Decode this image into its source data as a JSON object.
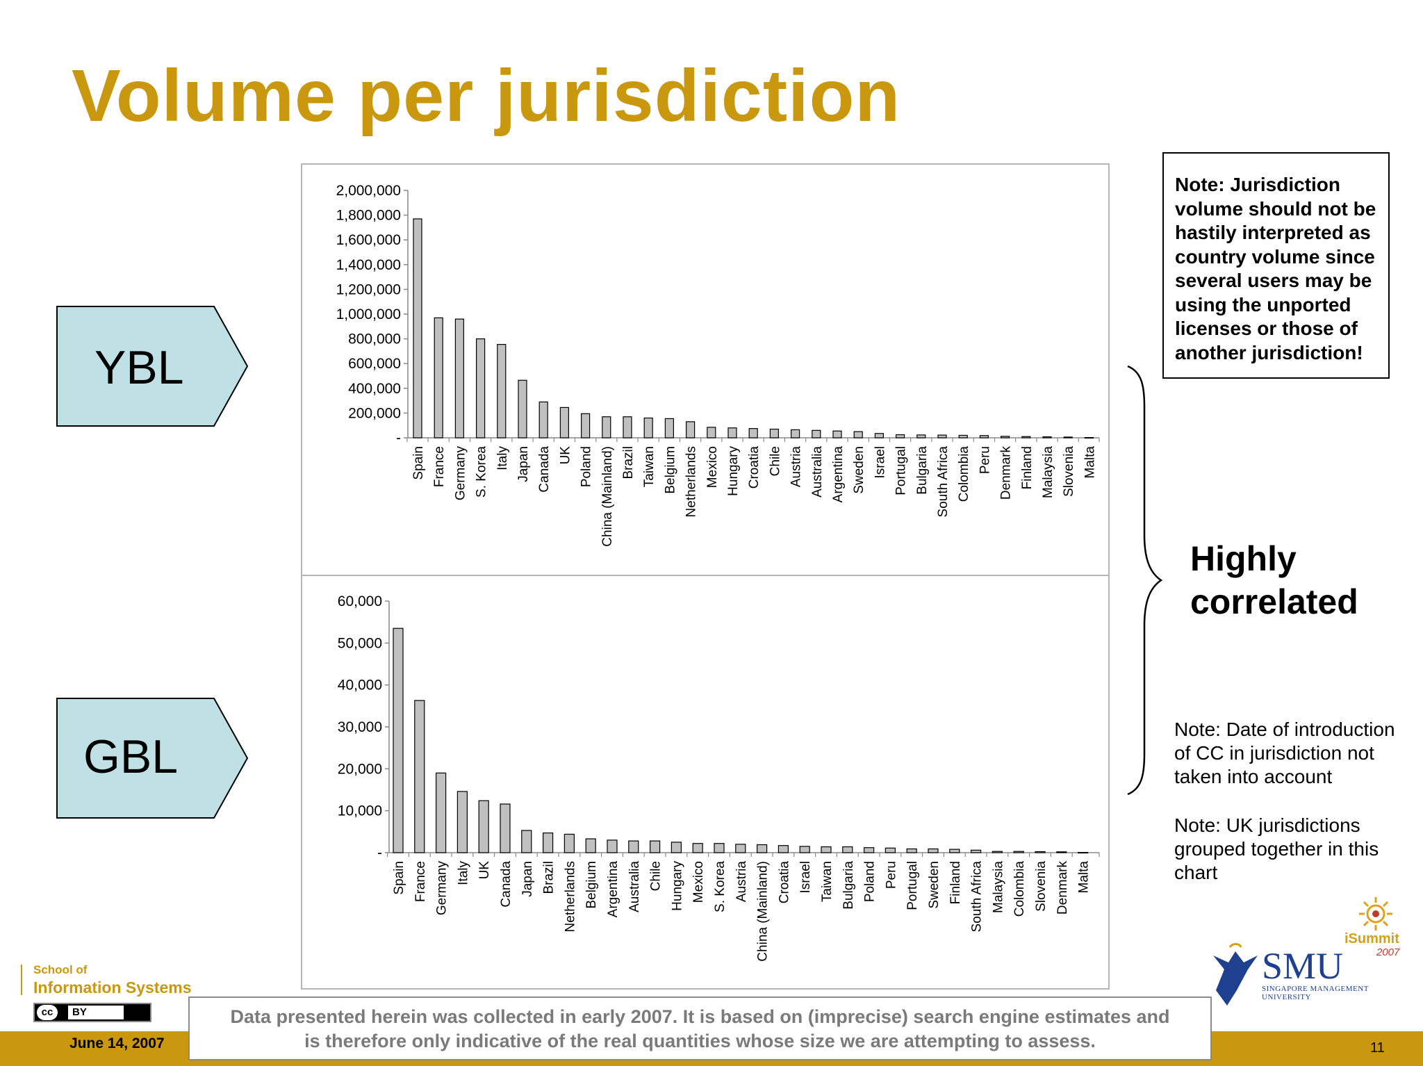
{
  "slide": {
    "title": "Volume per jurisdiction",
    "labels": {
      "ybl": "YBL",
      "gbl": "GBL"
    },
    "note_box": "Note: Jurisdiction volume should not be hastily interpreted as country volume since several users may be using the unported licenses or those of another jurisdiction!",
    "highly_line1": "Highly",
    "highly_line2": "correlated",
    "note_date": "Note: Date of introduction of CC in jurisdiction not taken into account",
    "note_uk": "Note: UK jurisdictions grouped together in this chart",
    "disclaimer_line1": "Data presented herein was collected in early 2007. It is based on (imprecise) search engine estimates and",
    "disclaimer_line2": "is therefore only indicative of the real quantities whose size we are attempting to assess.",
    "date": "June 14, 2007",
    "page_number": "11",
    "school_line1": "School of",
    "school_line2": "Information Systems",
    "cc_badge": "cc",
    "cc_by": "BY",
    "smu_name": "SMU",
    "smu_sub1": "SINGAPORE MANAGEMENT",
    "smu_sub2": "UNIVERSITY",
    "isummit": "iSummit",
    "isummit_year": "2007",
    "colors": {
      "title": "#c9980f",
      "bar": "#c0c0c0",
      "arrow_fill": "#bfe0e4",
      "footer": "#c9980f"
    }
  },
  "chart_data": [
    {
      "type": "bar",
      "title": "",
      "xlabel": "",
      "ylabel": "",
      "ylim": [
        0,
        2000000
      ],
      "yticks": [
        0,
        200000,
        400000,
        600000,
        800000,
        1000000,
        1200000,
        1400000,
        1600000,
        1800000,
        2000000
      ],
      "ytick_labels": [
        "-",
        "200,000",
        "400,000",
        "600,000",
        "800,000",
        "1,000,000",
        "1,200,000",
        "1,400,000",
        "1,600,000",
        "1,800,000",
        "2,000,000"
      ],
      "categories": [
        "Spain",
        "France",
        "Germany",
        "S. Korea",
        "Italy",
        "Japan",
        "Canada",
        "UK",
        "Poland",
        "China (Mainland)",
        "Brazil",
        "Taiwan",
        "Belgium",
        "Netherlands",
        "Mexico",
        "Hungary",
        "Croatia",
        "Chile",
        "Austria",
        "Australia",
        "Argentina",
        "Sweden",
        "Israel",
        "Portugal",
        "Bulgaria",
        "South Africa",
        "Colombia",
        "Peru",
        "Denmark",
        "Finland",
        "Malaysia",
        "Slovenia",
        "Malta"
      ],
      "values": [
        1770000,
        970000,
        960000,
        800000,
        755000,
        465000,
        290000,
        245000,
        195000,
        170000,
        170000,
        160000,
        155000,
        130000,
        85000,
        80000,
        75000,
        70000,
        65000,
        60000,
        55000,
        50000,
        35000,
        25000,
        23000,
        22000,
        20000,
        18000,
        12000,
        10000,
        8000,
        6000,
        2000
      ]
    },
    {
      "type": "bar",
      "title": "",
      "xlabel": "",
      "ylabel": "",
      "ylim": [
        0,
        60000
      ],
      "yticks": [
        0,
        10000,
        20000,
        30000,
        40000,
        50000,
        60000
      ],
      "ytick_labels": [
        "-",
        "10,000",
        "20,000",
        "30,000",
        "40,000",
        "50,000",
        "60,000"
      ],
      "categories": [
        "Spain",
        "France",
        "Germany",
        "Italy",
        "UK",
        "Canada",
        "Japan",
        "Brazil",
        "Netherlands",
        "Belgium",
        "Argentina",
        "Australia",
        "Chile",
        "Hungary",
        "Mexico",
        "S. Korea",
        "Austria",
        "China (Mainland)",
        "Croatia",
        "Israel",
        "Taiwan",
        "Bulgaria",
        "Poland",
        "Peru",
        "Portugal",
        "Sweden",
        "Finland",
        "South Africa",
        "Malaysia",
        "Colombia",
        "Slovenia",
        "Denmark",
        "Malta"
      ],
      "values": [
        53500,
        36300,
        19000,
        14600,
        12400,
        11600,
        5300,
        4700,
        4400,
        3300,
        3000,
        2800,
        2800,
        2500,
        2200,
        2200,
        2000,
        1900,
        1700,
        1500,
        1400,
        1400,
        1200,
        1100,
        900,
        900,
        800,
        600,
        300,
        300,
        250,
        200,
        50
      ]
    }
  ]
}
